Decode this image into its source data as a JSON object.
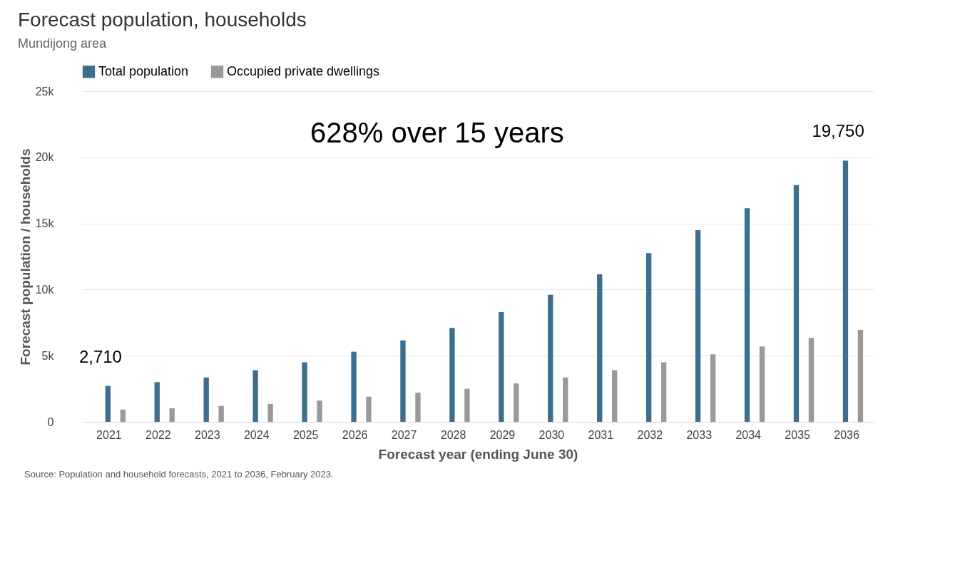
{
  "chart_data": {
    "type": "bar",
    "title": "Forecast population, households",
    "subtitle": "Mundijong area",
    "xlabel": "Forecast year (ending June 30)",
    "ylabel": "Forecast population / households",
    "categories": [
      "2021",
      "2022",
      "2023",
      "2024",
      "2025",
      "2026",
      "2027",
      "2028",
      "2029",
      "2030",
      "2031",
      "2032",
      "2033",
      "2034",
      "2035",
      "2036"
    ],
    "series": [
      {
        "name": "Total population",
        "color": "#3d6e8f",
        "values": [
          2710,
          3000,
          3350,
          3900,
          4500,
          5300,
          6150,
          7100,
          8300,
          9600,
          11150,
          12750,
          14500,
          16150,
          17900,
          19750
        ]
      },
      {
        "name": "Occupied private dwellings",
        "color": "#999999",
        "values": [
          920,
          1020,
          1200,
          1350,
          1600,
          1900,
          2200,
          2500,
          2900,
          3350,
          3900,
          4500,
          5100,
          5700,
          6350,
          6950
        ]
      }
    ],
    "ylim": [
      0,
      25000
    ],
    "yticks": [
      {
        "value": 0,
        "label": "0"
      },
      {
        "value": 5000,
        "label": "5k"
      },
      {
        "value": 10000,
        "label": "10k"
      },
      {
        "value": 15000,
        "label": "15k"
      },
      {
        "value": 20000,
        "label": "20k"
      },
      {
        "value": 25000,
        "label": "25k"
      }
    ],
    "grid": "y",
    "legend": "top left",
    "annotations": [
      "628% over 15 years",
      {
        "text": "2,710",
        "x": "2021",
        "y": 2710
      },
      {
        "text": "19,750",
        "x": "2036",
        "y": 19750
      },
      "Source: Population and household forecasts, 2021 to 2036, February 2023."
    ]
  }
}
